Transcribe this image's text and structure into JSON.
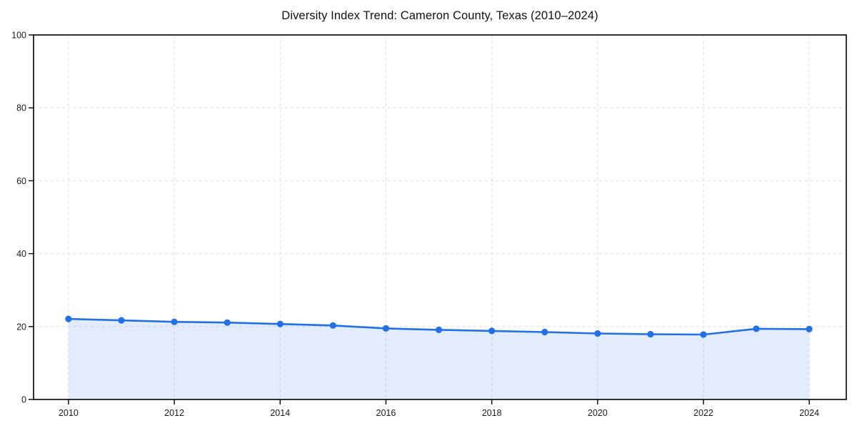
{
  "chart_data": {
    "type": "area",
    "title": "Diversity Index Trend: Cameron County, Texas (2010–2024)",
    "xlabel": "",
    "ylabel": "",
    "x": [
      2010,
      2011,
      2012,
      2013,
      2014,
      2015,
      2016,
      2017,
      2018,
      2019,
      2020,
      2021,
      2022,
      2023,
      2024
    ],
    "series": [
      {
        "name": "Diversity Index",
        "values": [
          22.1,
          21.7,
          21.3,
          21.1,
          20.7,
          20.3,
          19.5,
          19.1,
          18.8,
          18.5,
          18.1,
          17.9,
          17.8,
          19.4,
          19.3
        ]
      }
    ],
    "xlim": [
      2009.34,
      2024.7
    ],
    "ylim": [
      0,
      100
    ],
    "xticks": [
      2010,
      2012,
      2014,
      2016,
      2018,
      2020,
      2022,
      2024
    ],
    "xtick_labels": [
      "2010",
      "2012",
      "2014",
      "2016",
      "2018",
      "2020",
      "2022",
      "2024"
    ],
    "yticks": [
      0,
      20,
      40,
      60,
      80,
      100
    ],
    "ytick_labels": [
      "0",
      "20",
      "40",
      "60",
      "80",
      "100"
    ],
    "grid": true,
    "grid_style": "dashed",
    "legend": "none",
    "marker": "circle",
    "colors": {
      "line": "#2170e8",
      "marker": "#2170e8",
      "fill": "rgba(33, 112, 232, 0.13)",
      "grid": "#dddddd",
      "spine": "#000000",
      "tick_text": "#1a1a1a",
      "title_text": "#111111",
      "background": "#ffffff"
    }
  }
}
